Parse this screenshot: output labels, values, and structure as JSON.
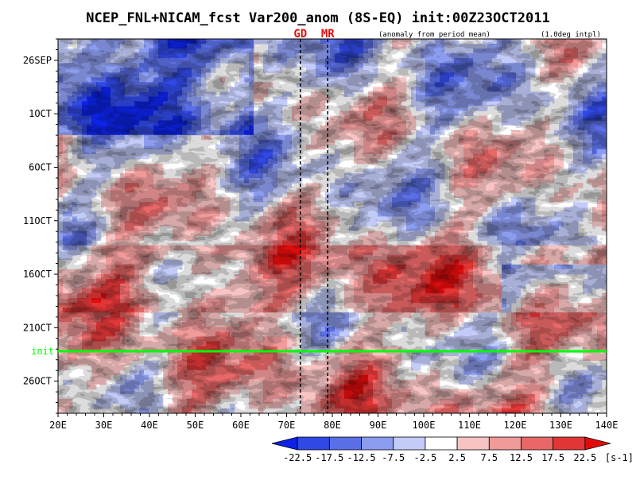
{
  "chart_data": {
    "type": "heatmap",
    "title": "NCEP_FNL+NICAM_fcst Var200_anom (8S-EQ) init:00Z23OCT2011",
    "subtitle_left": "(anomaly from period mean)",
    "subtitle_right": "(1.0deg intpl)",
    "xlabel": "",
    "ylabel": "",
    "x_ticks": [
      "20E",
      "30E",
      "40E",
      "50E",
      "60E",
      "70E",
      "80E",
      "90E",
      "100E",
      "110E",
      "120E",
      "130E",
      "140E"
    ],
    "x_range": [
      20,
      140
    ],
    "y_ticks": [
      "26SEP",
      "1OCT",
      "6OCT",
      "11OCT",
      "16OCT",
      "21OCT",
      "26OCT"
    ],
    "y_tick_day_offsets": [
      0,
      5,
      10,
      15,
      20,
      25,
      30
    ],
    "y_range_day_offsets": [
      -2,
      33
    ],
    "markers": [
      {
        "label": "GD",
        "lon": 73
      },
      {
        "label": "MR",
        "lon": 79
      }
    ],
    "init_line": {
      "label": "init",
      "day_offset": 27.2,
      "color": "#00ff00"
    },
    "colorbar": {
      "levels": [
        "-22.5",
        "-17.5",
        "-12.5",
        "-7.5",
        "-2.5",
        "2.5",
        "7.5",
        "12.5",
        "17.5",
        "22.5"
      ],
      "unit": "[s-1]",
      "colors": [
        "#0c22e6",
        "#3048e4",
        "#5a6fe6",
        "#8c9cf0",
        "#c3cbf8",
        "#ffffff",
        "#f8c3c3",
        "#f09a9a",
        "#e86868",
        "#e23636",
        "#e00c0c"
      ]
    }
  }
}
